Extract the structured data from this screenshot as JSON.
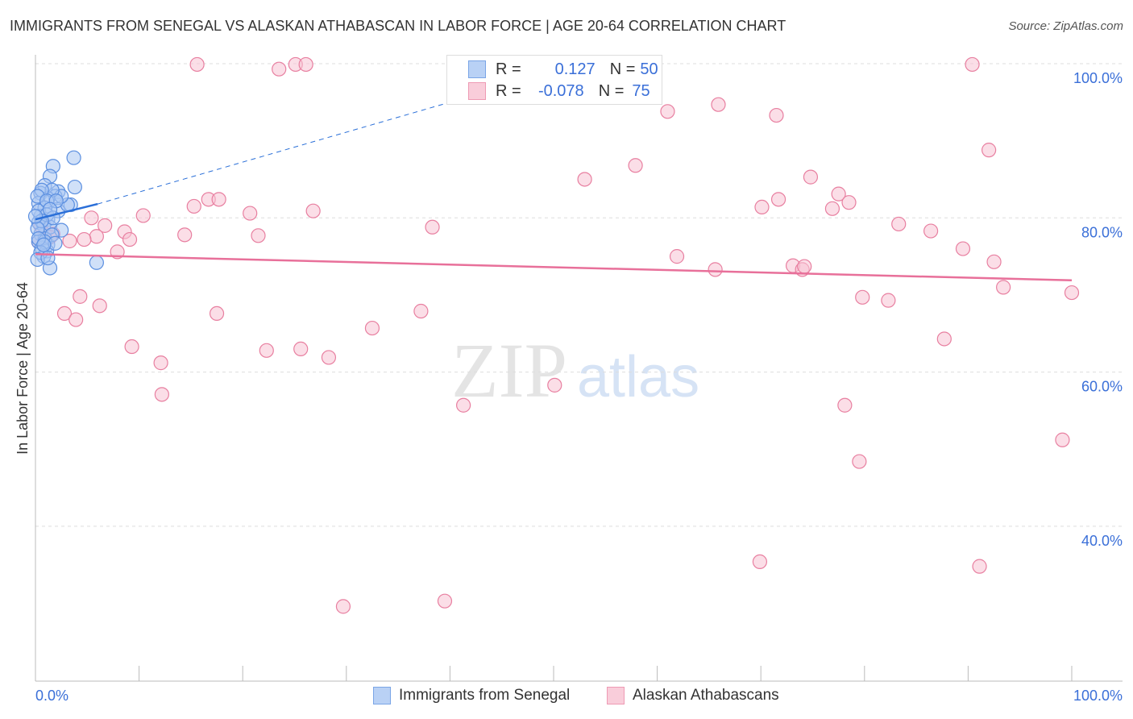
{
  "chart_data": {
    "type": "scatter",
    "title": "IMMIGRANTS FROM SENEGAL VS ALASKAN ATHABASCAN IN LABOR FORCE | AGE 20-64 CORRELATION CHART",
    "source": "Source: ZipAtlas.com",
    "xlabel": "",
    "ylabel": "In Labor Force | Age 20-64",
    "xlim": [
      0,
      100
    ],
    "ylim": [
      20,
      100
    ],
    "x_tick_labels": [
      "0.0%",
      "100.0%"
    ],
    "y_ticks": [
      {
        "v": 100,
        "label": "100.0%"
      },
      {
        "v": 80,
        "label": "80.0%"
      },
      {
        "v": 60,
        "label": "60.0%"
      },
      {
        "v": 40,
        "label": "40.0%"
      }
    ],
    "grid": true,
    "legend": {
      "position": "top-center",
      "entries": [
        {
          "name": "Immigrants from Senegal",
          "r_label": "R =",
          "r": "0.127",
          "n_label": "N =",
          "n": "50"
        },
        {
          "name": "Alaskan Athabascans",
          "r_label": "R =",
          "r": "-0.078",
          "n_label": "N =",
          "n": "75"
        }
      ]
    },
    "colors": {
      "blue": "#5b8fe0",
      "blue_fill": "#a9c6f2",
      "pink": "#e87fa0",
      "pink_fill": "#f7c3d3",
      "blue_line": "#2a6fd8",
      "pink_line": "#e8709a"
    },
    "series": [
      {
        "name": "Immigrants from Senegal",
        "trend": {
          "x": [
            0,
            6,
            40
          ],
          "y": [
            79.8,
            81.8,
            95
          ],
          "solid_until": 6
        },
        "points": [
          [
            3.7,
            87.8
          ],
          [
            1.7,
            86.7
          ],
          [
            1.4,
            85.4
          ],
          [
            3.8,
            84
          ],
          [
            0.9,
            84.2
          ],
          [
            0.5,
            83.2
          ],
          [
            2.2,
            83.4
          ],
          [
            1.9,
            82.8
          ],
          [
            3.4,
            81.7
          ],
          [
            1.2,
            82.5
          ],
          [
            0.3,
            81.9
          ],
          [
            2.2,
            80.9
          ],
          [
            0.9,
            81.3
          ],
          [
            0.5,
            80.2
          ],
          [
            1.2,
            79.8
          ],
          [
            0.3,
            79.4
          ],
          [
            0.8,
            79
          ],
          [
            1.4,
            78.8
          ],
          [
            2.5,
            78.4
          ],
          [
            0.5,
            77.9
          ],
          [
            0.9,
            77.3
          ],
          [
            0.3,
            76.9
          ],
          [
            1.2,
            76.5
          ],
          [
            0.6,
            76.1
          ],
          [
            1.1,
            75.7
          ],
          [
            0.8,
            75
          ],
          [
            1.4,
            73.5
          ],
          [
            5.9,
            74.2
          ],
          [
            3.1,
            81.7
          ],
          [
            2.5,
            82.8
          ],
          [
            1.6,
            83.6
          ],
          [
            0.6,
            83.6
          ],
          [
            0.3,
            80.9
          ],
          [
            1.1,
            80.4
          ],
          [
            1.7,
            80
          ],
          [
            0.6,
            79.6
          ],
          [
            0.2,
            78.6
          ],
          [
            1.6,
            77.8
          ],
          [
            0.9,
            76.9
          ],
          [
            0.5,
            75.5
          ],
          [
            0.2,
            74.6
          ],
          [
            1.2,
            74.8
          ],
          [
            1.9,
            76.7
          ],
          [
            0.2,
            82.8
          ],
          [
            1.1,
            82.2
          ],
          [
            2,
            82.2
          ],
          [
            0.3,
            77.3
          ],
          [
            0.8,
            76.5
          ],
          [
            1.4,
            81.1
          ],
          [
            0,
            80.2
          ]
        ]
      },
      {
        "name": "Alaskan Athabascans",
        "trend": {
          "x": [
            0,
            100
          ],
          "y": [
            75.3,
            71.9
          ]
        },
        "points": [
          [
            15.6,
            99.9
          ],
          [
            23.5,
            99.3
          ],
          [
            25.1,
            99.9
          ],
          [
            26.1,
            99.9
          ],
          [
            90.4,
            99.9
          ],
          [
            61,
            93.8
          ],
          [
            65.9,
            94.7
          ],
          [
            71.5,
            93.3
          ],
          [
            92,
            88.8
          ],
          [
            57.9,
            86.8
          ],
          [
            53,
            85
          ],
          [
            74.8,
            85.3
          ],
          [
            77.5,
            83.1
          ],
          [
            71.7,
            82.4
          ],
          [
            70.1,
            81.4
          ],
          [
            78.5,
            82
          ],
          [
            76.9,
            81.2
          ],
          [
            15.3,
            81.5
          ],
          [
            16.7,
            82.4
          ],
          [
            17.7,
            82.4
          ],
          [
            20.7,
            80.6
          ],
          [
            26.8,
            80.9
          ],
          [
            10.4,
            80.3
          ],
          [
            5.4,
            80
          ],
          [
            6.7,
            79
          ],
          [
            38.3,
            78.8
          ],
          [
            83.3,
            79.2
          ],
          [
            86.4,
            78.3
          ],
          [
            8.6,
            78.2
          ],
          [
            14.4,
            77.8
          ],
          [
            21.5,
            77.7
          ],
          [
            5.9,
            77.6
          ],
          [
            9.1,
            77.2
          ],
          [
            4.7,
            77.2
          ],
          [
            3.3,
            77
          ],
          [
            7.9,
            75.6
          ],
          [
            1.7,
            77.9
          ],
          [
            89.5,
            76
          ],
          [
            92.5,
            74.3
          ],
          [
            61.9,
            75
          ],
          [
            65.6,
            73.3
          ],
          [
            73.1,
            73.8
          ],
          [
            74,
            73.3
          ],
          [
            74.2,
            73.7
          ],
          [
            93.4,
            71
          ],
          [
            100,
            70.3
          ],
          [
            79.8,
            69.7
          ],
          [
            82.3,
            69.3
          ],
          [
            4.3,
            69.8
          ],
          [
            6.2,
            68.6
          ],
          [
            2.8,
            67.6
          ],
          [
            3.9,
            66.8
          ],
          [
            17.5,
            67.6
          ],
          [
            37.2,
            67.9
          ],
          [
            32.5,
            65.7
          ],
          [
            87.7,
            64.3
          ],
          [
            9.3,
            63.3
          ],
          [
            22.3,
            62.8
          ],
          [
            25.6,
            63
          ],
          [
            28.3,
            61.9
          ],
          [
            12.1,
            61.2
          ],
          [
            50.1,
            58.3
          ],
          [
            12.2,
            57.1
          ],
          [
            41.3,
            55.7
          ],
          [
            78.1,
            55.7
          ],
          [
            79.5,
            48.4
          ],
          [
            99.1,
            51.2
          ],
          [
            69.9,
            35.4
          ],
          [
            91.1,
            34.8
          ],
          [
            29.7,
            29.6
          ],
          [
            39.5,
            30.3
          ],
          [
            0.5,
            79
          ],
          [
            0.9,
            77.9
          ],
          [
            1.4,
            77.5
          ],
          [
            0.3,
            76.9
          ]
        ]
      }
    ]
  }
}
